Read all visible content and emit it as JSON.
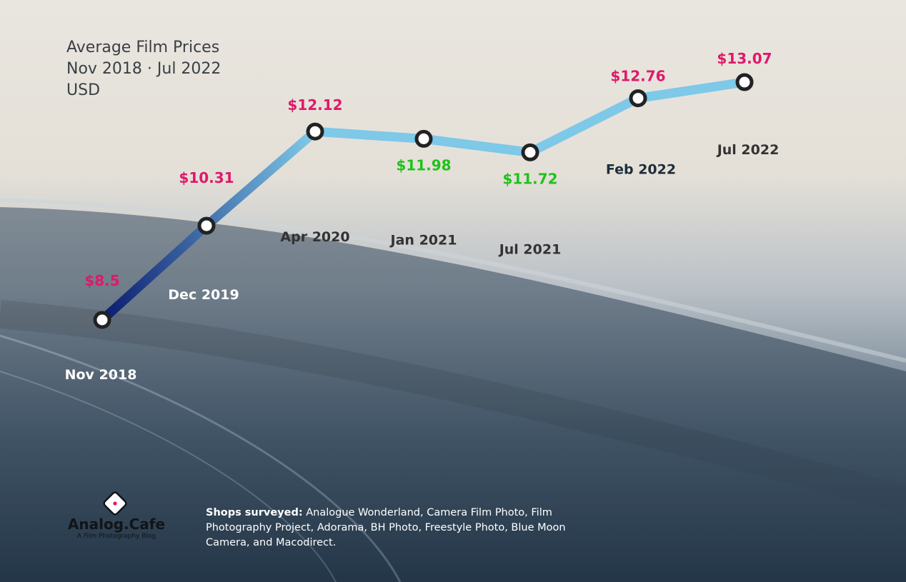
{
  "chart_data": {
    "type": "line",
    "title": "Average Film Prices",
    "subtitle": "Nov 2018 · Jul 2022",
    "unit": "USD",
    "x": [
      "Nov 2018",
      "Dec 2019",
      "Apr 2020",
      "Jan 2021",
      "Jul 2021",
      "Feb 2022",
      "Jul 2022"
    ],
    "values": [
      8.5,
      10.31,
      12.12,
      11.98,
      11.72,
      12.76,
      13.07
    ],
    "data_labels": [
      "$8.5",
      "$10.31",
      "$12.12",
      "$11.98",
      "$11.72",
      "$12.76",
      "$13.07"
    ],
    "label_colors": [
      "#e0186a",
      "#e0186a",
      "#e0186a",
      "#1fc21a",
      "#1fc21a",
      "#e0186a",
      "#e0186a"
    ],
    "xlabel_colors": [
      "#ffffff",
      "#ffffff",
      "#333333",
      "#333333",
      "#333333",
      "#1d2e3a",
      "#333333"
    ],
    "ylim": [
      8.5,
      13.07
    ],
    "grid": false,
    "legend": "none"
  },
  "brand": {
    "name": "Analog.Cafe",
    "tagline": "A Film Photography Blog",
    "icon": "diamond-logo-icon"
  },
  "footer": {
    "shops_label": "Shops surveyed:",
    "shops_text": "Analogue Wonderland, Camera Film Photo, Film Photography Project, Adorama, BH Photo, Freestyle Photo, Blue Moon Camera, and Macodirect."
  },
  "colors": {
    "line_start": "#0a1a6e",
    "line_end": "#7ec8e8",
    "marker_stroke": "#222222",
    "marker_fill": "#ffffff"
  }
}
